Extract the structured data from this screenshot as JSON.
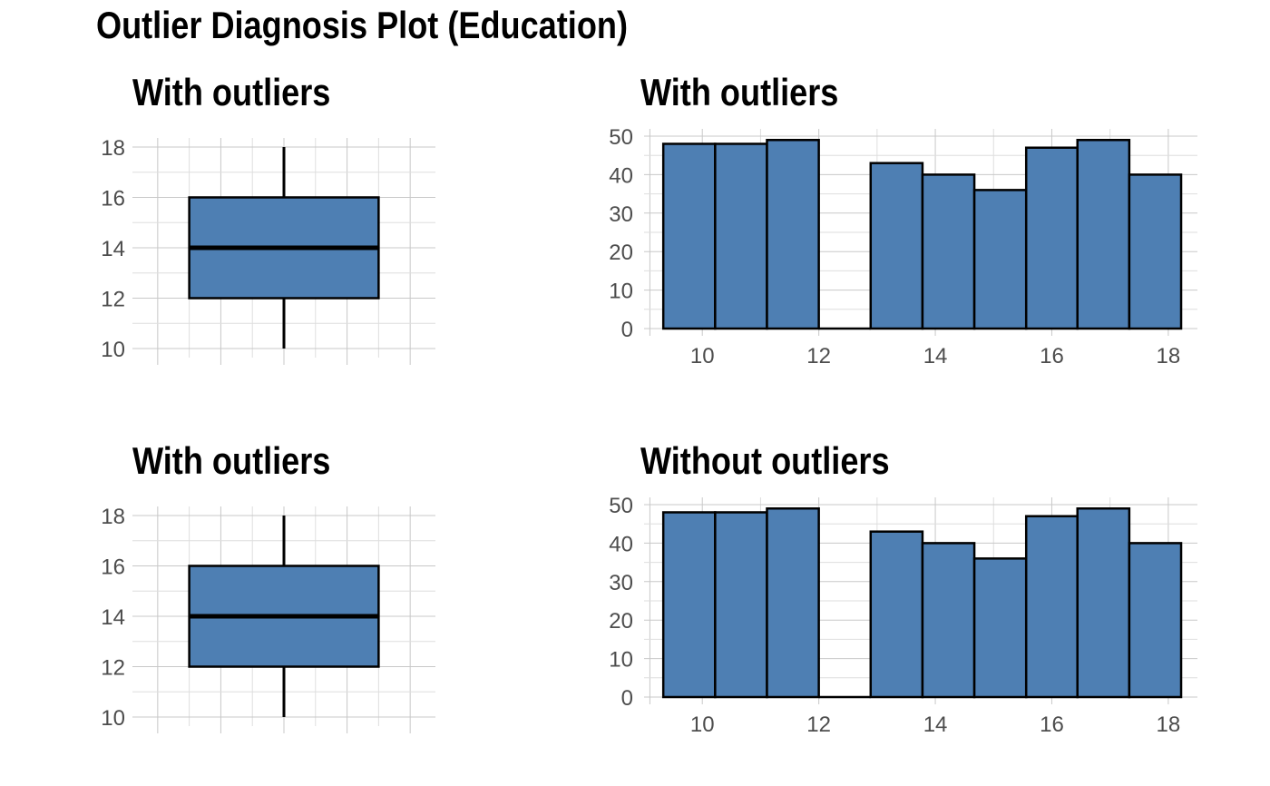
{
  "title": "Outlier Diagnosis Plot (Education)",
  "colors": {
    "fill": "#4e7fb3",
    "outline": "#000000",
    "grid": "#c8c8c8",
    "tick_text": "#4d4d4d"
  },
  "chart_data": [
    {
      "type": "box",
      "title": "With outliers",
      "ylim": [
        10,
        18
      ],
      "yticks": [
        "10",
        "12",
        "14",
        "16",
        "18"
      ],
      "grid": true,
      "min": 10,
      "q1": 12,
      "median": 14,
      "q3": 16,
      "max": 18
    },
    {
      "type": "bar",
      "title": "With outliers",
      "ylim": [
        0,
        50
      ],
      "yticks": [
        "0",
        "10",
        "20",
        "30",
        "40",
        "50"
      ],
      "xlim": [
        9.0,
        18.5
      ],
      "xticks": [
        "10",
        "12",
        "14",
        "16",
        "18"
      ],
      "grid": true,
      "bin_edges": [
        9.33,
        10.22,
        11.11,
        12.0,
        12.89,
        13.78,
        14.67,
        15.56,
        16.44,
        17.33,
        18.22
      ],
      "values": [
        48,
        48,
        49,
        0,
        43,
        40,
        36,
        47,
        49,
        40
      ]
    },
    {
      "type": "box",
      "title": "With outliers",
      "ylim": [
        10,
        18
      ],
      "yticks": [
        "10",
        "12",
        "14",
        "16",
        "18"
      ],
      "grid": true,
      "min": 10,
      "q1": 12,
      "median": 14,
      "q3": 16,
      "max": 18
    },
    {
      "type": "bar",
      "title": "Without outliers",
      "ylim": [
        0,
        50
      ],
      "yticks": [
        "0",
        "10",
        "20",
        "30",
        "40",
        "50"
      ],
      "xlim": [
        9.0,
        18.5
      ],
      "xticks": [
        "10",
        "12",
        "14",
        "16",
        "18"
      ],
      "grid": true,
      "bin_edges": [
        9.33,
        10.22,
        11.11,
        12.0,
        12.89,
        13.78,
        14.67,
        15.56,
        16.44,
        17.33,
        18.22
      ],
      "values": [
        48,
        48,
        49,
        0,
        43,
        40,
        36,
        47,
        49,
        40
      ]
    }
  ]
}
